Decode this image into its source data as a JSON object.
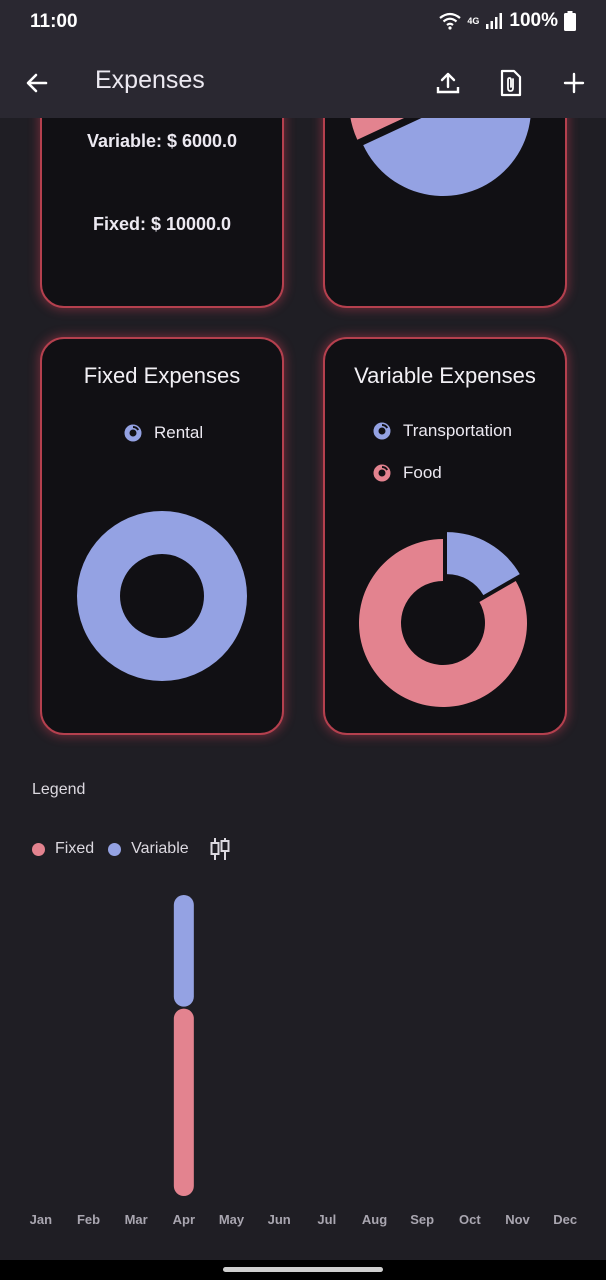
{
  "status": {
    "time": "11:00",
    "network": "4G",
    "battery": "100%"
  },
  "appbar": {
    "title": "Expenses",
    "icons": [
      "back-arrow-icon",
      "upload-icon",
      "attachment-icon",
      "add-icon"
    ]
  },
  "summary": {
    "variable_text": "Variable: $ 6000.0",
    "fixed_text": "Fixed: $ 10000.0"
  },
  "colors": {
    "fixed": "#e3838f",
    "variable": "#94a2e3",
    "card_border": "#b5404e",
    "card_bg": "#111014",
    "page_bg": "#1f1e24",
    "appbar_bg": "#2a2831"
  },
  "fixed_card": {
    "title": "Fixed Expenses",
    "legend": [
      {
        "label": "Rental",
        "color": "#94a2e3"
      }
    ]
  },
  "variable_card": {
    "title": "Variable Expenses",
    "legend": [
      {
        "label": "Transportation",
        "color": "#94a2e3"
      },
      {
        "label": "Food",
        "color": "#e3838f"
      }
    ]
  },
  "legend_section": {
    "title": "Legend",
    "fixed_label": "Fixed",
    "variable_label": "Variable",
    "chart_type_icon": "candlestick-icon"
  },
  "chart_data": [
    {
      "type": "pie",
      "categories": [
        "Fixed",
        "Variable"
      ],
      "values": [
        10000,
        6000
      ],
      "title": "",
      "colors": [
        "#94a2e3",
        "#e3838f"
      ],
      "exploded": true
    },
    {
      "type": "pie",
      "title": "Fixed Expenses",
      "categories": [
        "Rental"
      ],
      "values": [
        10000
      ],
      "donut": true,
      "colors": [
        "#94a2e3"
      ]
    },
    {
      "type": "pie",
      "title": "Variable Expenses",
      "categories": [
        "Transportation",
        "Food"
      ],
      "values": [
        1000,
        5000
      ],
      "donut": true,
      "colors": [
        "#94a2e3",
        "#e3838f"
      ]
    },
    {
      "type": "bar",
      "stacked": true,
      "categories": [
        "Jan",
        "Feb",
        "Mar",
        "Apr",
        "May",
        "Jun",
        "Jul",
        "Aug",
        "Sep",
        "Oct",
        "Nov",
        "Dec"
      ],
      "series": [
        {
          "name": "Fixed",
          "values": [
            0,
            0,
            0,
            10000,
            0,
            0,
            0,
            0,
            0,
            0,
            0,
            0
          ]
        },
        {
          "name": "Variable",
          "values": [
            0,
            0,
            0,
            6000,
            0,
            0,
            0,
            0,
            0,
            0,
            0,
            0
          ]
        }
      ],
      "ylim": [
        0,
        16000
      ]
    }
  ]
}
